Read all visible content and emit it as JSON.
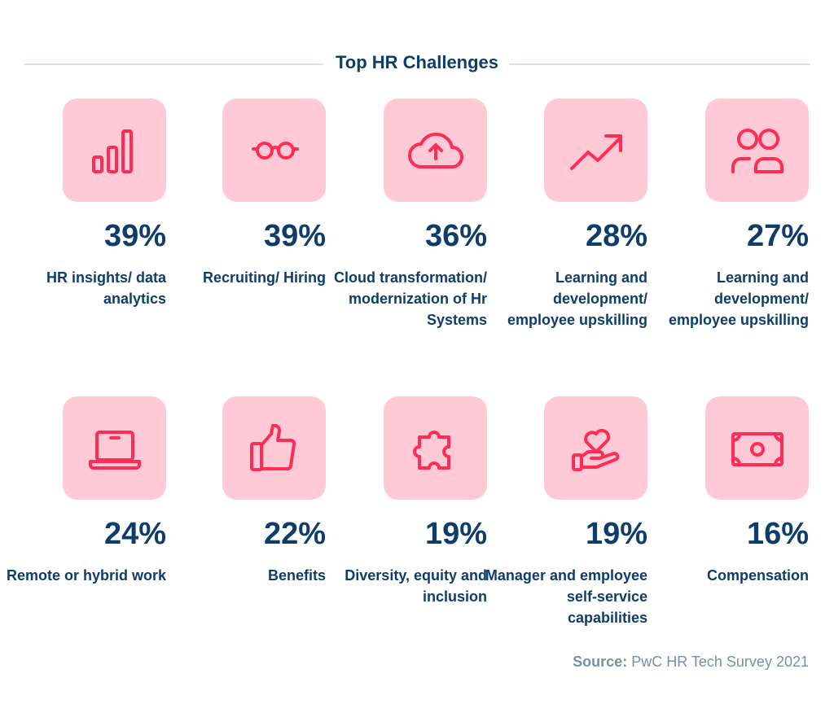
{
  "title": "Top HR Challenges",
  "colors": {
    "text": "#0f3d6b",
    "tile": "#ffc9d5",
    "icon": "#ff2d55",
    "source": "#7a8ea6"
  },
  "items": [
    {
      "icon": "bar-chart-icon",
      "percent": "39%",
      "label": "HR insights/ data analytics"
    },
    {
      "icon": "glasses-icon",
      "percent": "39%",
      "label": "Recruiting/ Hiring"
    },
    {
      "icon": "cloud-upload-icon",
      "percent": "36%",
      "label": "Cloud transformation/ modernization of Hr Systems"
    },
    {
      "icon": "trending-up-icon",
      "percent": "28%",
      "label": "Learning and development/ employee upskilling"
    },
    {
      "icon": "users-icon",
      "percent": "27%",
      "label": "Learning and development/ employee upskilling"
    },
    {
      "icon": "laptop-icon",
      "percent": "24%",
      "label": "Remote or hybrid work"
    },
    {
      "icon": "thumbs-up-icon",
      "percent": "22%",
      "label": "Benefits"
    },
    {
      "icon": "puzzle-icon",
      "percent": "19%",
      "label": "Diversity, equity and inclusion"
    },
    {
      "icon": "hand-heart-icon",
      "percent": "19%",
      "label": "Manager and employee self-service capabilities"
    },
    {
      "icon": "banknote-icon",
      "percent": "16%",
      "label": "Compensation"
    }
  ],
  "source": {
    "prefix": "Source:",
    "text": "PwC HR Tech Survey 2021"
  }
}
